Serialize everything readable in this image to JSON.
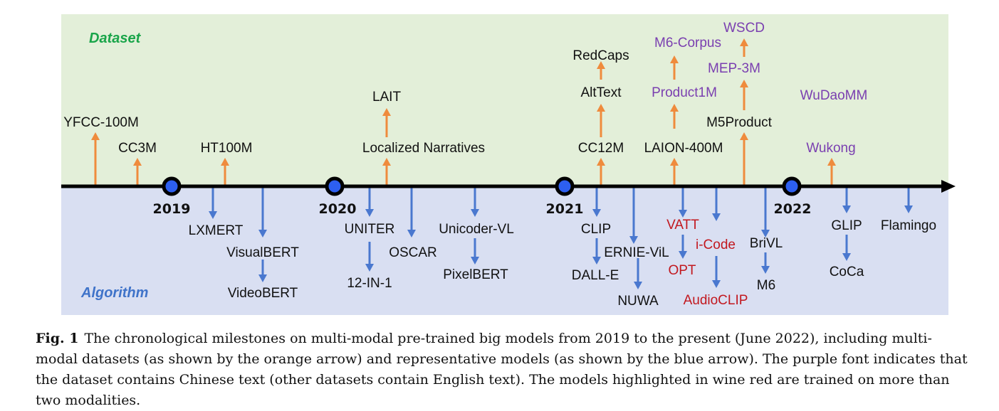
{
  "sections": {
    "dataset": "Dataset",
    "algorithm": "Algorithm"
  },
  "colors": {
    "dataset_bg": "#e3efd9",
    "algorithm_bg": "#d9dff2",
    "orange": "#ef8b3d",
    "blue": "#4a78cf",
    "english": "#111111",
    "chinese": "#7a3fb0",
    "multimodal": "#c2181f",
    "dataset_label": "#1aa54a",
    "algorithm_label": "#3f73c9"
  },
  "years": [
    "2019",
    "2020",
    "2021",
    "2022"
  ],
  "datasets": [
    {
      "name": "YFCC-100M",
      "lang": "english"
    },
    {
      "name": "CC3M",
      "lang": "english"
    },
    {
      "name": "HT100M",
      "lang": "english"
    },
    {
      "name": "Localized Narratives",
      "lang": "english"
    },
    {
      "name": "LAIT",
      "lang": "english"
    },
    {
      "name": "CC12M",
      "lang": "english"
    },
    {
      "name": "AltText",
      "lang": "english"
    },
    {
      "name": "RedCaps",
      "lang": "english"
    },
    {
      "name": "LAION-400M",
      "lang": "english"
    },
    {
      "name": "Product1M",
      "lang": "chinese"
    },
    {
      "name": "M6-Corpus",
      "lang": "chinese"
    },
    {
      "name": "M5Product",
      "lang": "english"
    },
    {
      "name": "MEP-3M",
      "lang": "chinese"
    },
    {
      "name": "WSCD",
      "lang": "chinese"
    },
    {
      "name": "Wukong",
      "lang": "chinese"
    },
    {
      "name": "WuDaoMM",
      "lang": "chinese"
    }
  ],
  "models": [
    {
      "name": "LXMERT",
      "multimodal": false
    },
    {
      "name": "VisualBERT",
      "multimodal": false
    },
    {
      "name": "VideoBERT",
      "multimodal": false
    },
    {
      "name": "UNITER",
      "multimodal": false
    },
    {
      "name": "12-IN-1",
      "multimodal": false
    },
    {
      "name": "OSCAR",
      "multimodal": false
    },
    {
      "name": "Unicoder-VL",
      "multimodal": false
    },
    {
      "name": "PixelBERT",
      "multimodal": false
    },
    {
      "name": "CLIP",
      "multimodal": false
    },
    {
      "name": "DALL-E",
      "multimodal": false
    },
    {
      "name": "ERNIE-ViL",
      "multimodal": false
    },
    {
      "name": "NUWA",
      "multimodal": false
    },
    {
      "name": "VATT",
      "multimodal": true
    },
    {
      "name": "OPT",
      "multimodal": true
    },
    {
      "name": "i-Code",
      "multimodal": true
    },
    {
      "name": "AudioCLIP",
      "multimodal": true
    },
    {
      "name": "BriVL",
      "multimodal": false
    },
    {
      "name": "M6",
      "multimodal": false
    },
    {
      "name": "GLIP",
      "multimodal": false
    },
    {
      "name": "CoCa",
      "multimodal": false
    },
    {
      "name": "Flamingo",
      "multimodal": false
    }
  ],
  "caption": {
    "fig_label": "Fig. 1",
    "text": "The chronological milestones on multi-modal pre-trained big models from 2019 to the present (June 2022), including multi-modal datasets (as shown by the orange arrow) and representative models (as shown by the blue arrow). The purple font indicates that the dataset contains Chinese text (other datasets contain English text). The models highlighted in wine red are trained on more than two modalities."
  }
}
